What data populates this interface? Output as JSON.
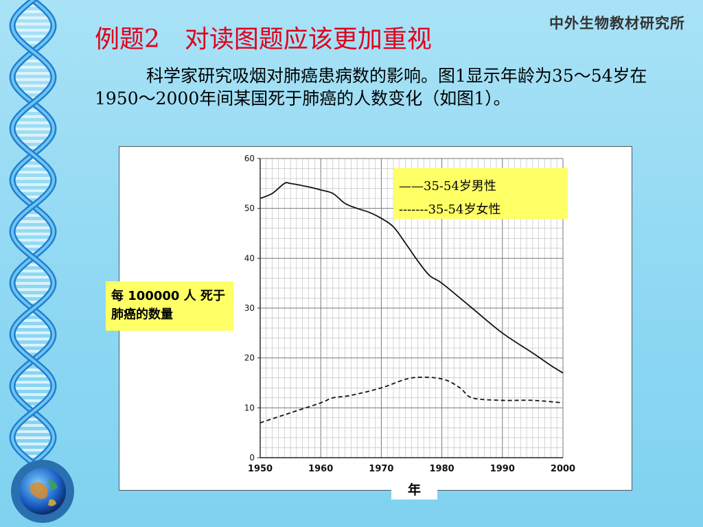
{
  "slide": {
    "brand": "中外生物教材研究所",
    "title": "例题2　对读图题应该更加重视",
    "intro": "　　　科学家研究吸烟对肺癌患病数的影响。图1显示年龄为35～54岁在1950～2000年间某国死于肺癌的人数变化（如图1）。"
  },
  "chart_data": {
    "type": "line",
    "xlabel": "年",
    "ylabel": "每 100000 人 死于肺癌的数量",
    "xlim": [
      1950,
      2000
    ],
    "ylim": [
      0,
      60
    ],
    "x_ticks": [
      "1950",
      "1960",
      "1970",
      "1980",
      "1990",
      "2000"
    ],
    "y_ticks": [
      "0",
      "10",
      "20",
      "30",
      "40",
      "50",
      "60"
    ],
    "grid": true,
    "legend_position": "top-right",
    "series": [
      {
        "name": "35-54岁男性",
        "legend_label": "——35-54岁男性",
        "style": "solid",
        "x": [
          1950,
          1952,
          1954,
          1955,
          1958,
          1960,
          1962,
          1964,
          1966,
          1968,
          1970,
          1972,
          1974,
          1976,
          1978,
          1980,
          1985,
          1990,
          1995,
          1998,
          2000
        ],
        "y": [
          52,
          53,
          55,
          55,
          54.3,
          53.7,
          53,
          51,
          50,
          49.2,
          48,
          46.3,
          43,
          39.5,
          36.5,
          35,
          30,
          25,
          21,
          18.5,
          17
        ]
      },
      {
        "name": "35-54岁女性",
        "legend_label": "-------35-54岁女性",
        "style": "dashed",
        "x": [
          1950,
          1955,
          1960,
          1962,
          1965,
          1970,
          1975,
          1980,
          1983,
          1985,
          1990,
          1995,
          2000
        ],
        "y": [
          7,
          9,
          11,
          12,
          12.5,
          14,
          16,
          15.8,
          14,
          12,
          11.5,
          11.5,
          11
        ]
      }
    ]
  }
}
